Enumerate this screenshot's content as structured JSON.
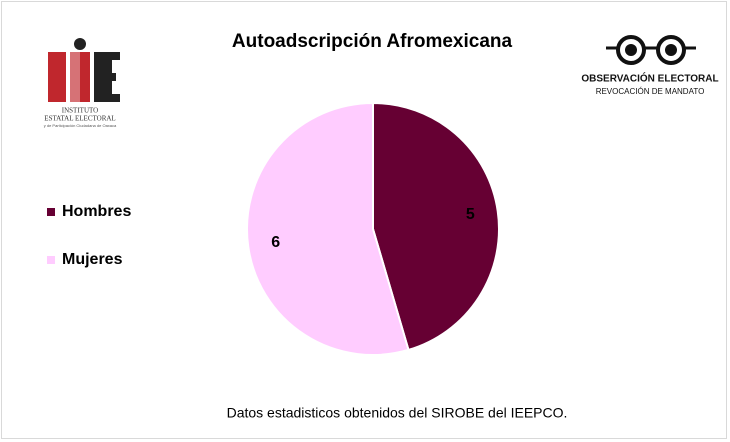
{
  "chart_data": {
    "type": "pie",
    "title": "Autoadscripción Afromexicana",
    "categories": [
      "Hombres",
      "Mujeres"
    ],
    "values": [
      5,
      6
    ],
    "colors": [
      "#660033",
      "#ffccff"
    ],
    "legend": "left",
    "source": "Datos estadisticos obtenidos del SIROBE del IEEPCO."
  },
  "logos": {
    "left": {
      "line1": "INSTITUTO",
      "line2": "ESTATAL ELECTORAL",
      "line3": "y de Participación Ciudadana de Oaxaca"
    },
    "right": {
      "line1": "OBSERVACIÓN ELECTORAL",
      "line2": "REVOCACIÓN DE MANDATO"
    }
  }
}
